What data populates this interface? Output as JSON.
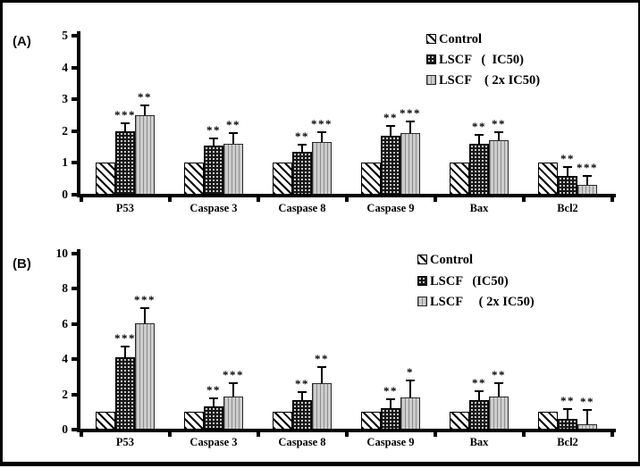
{
  "figure_title": "",
  "accent_color": "#000000",
  "background_color": "#ffffff",
  "chart_data": [
    {
      "id": "panel_a",
      "type": "bar",
      "panel_label": "(A)",
      "title": "",
      "xlabel": "",
      "ylabel": "",
      "grid": false,
      "legend_position": "top-right",
      "ylim": [
        0,
        5
      ],
      "yticks": [
        "0",
        "1",
        "2",
        "3",
        "4",
        "5"
      ],
      "categories": [
        "P53",
        "Caspase 3",
        "Caspase 8",
        "Caspase 9",
        "Bax",
        "Bcl2"
      ],
      "series": [
        {
          "name": "Control",
          "legend_label": "Control",
          "pattern": "hatch",
          "values": [
            1.0,
            1.0,
            1.0,
            1.0,
            1.0,
            1.0
          ],
          "errors": [
            0,
            0,
            0,
            0,
            0,
            0
          ],
          "sig": [
            "",
            "",
            "",
            "",
            "",
            ""
          ]
        },
        {
          "name": "LSCF (IC50)",
          "legend_label": "LSCF   (  IC50)",
          "pattern": "dots",
          "values": [
            2.0,
            1.55,
            1.35,
            1.85,
            1.6,
            0.6
          ],
          "errors": [
            0.25,
            0.22,
            0.22,
            0.3,
            0.28,
            0.26
          ],
          "sig": [
            "***",
            "**",
            "**",
            "**",
            "**",
            "**"
          ]
        },
        {
          "name": "LSCF (2x IC50)",
          "legend_label": "LSCF    ( 2x IC50)",
          "pattern": "vlines",
          "values": [
            2.5,
            1.6,
            1.65,
            1.95,
            1.7,
            0.32
          ],
          "errors": [
            0.3,
            0.35,
            0.33,
            0.35,
            0.27,
            0.26
          ],
          "sig": [
            "**",
            "**",
            "***",
            "***",
            "**",
            "***"
          ]
        }
      ]
    },
    {
      "id": "panel_b",
      "type": "bar",
      "panel_label": "(B)",
      "title": "",
      "xlabel": "",
      "ylabel": "",
      "grid": false,
      "legend_position": "top-right",
      "ylim": [
        0,
        10
      ],
      "yticks": [
        "0",
        "2",
        "4",
        "6",
        "8",
        "10"
      ],
      "categories": [
        "P53",
        "Caspase 3",
        "Caspase 8",
        "Caspase 9",
        "Bax",
        "Bcl2"
      ],
      "series": [
        {
          "name": "Control",
          "legend_label": "Control",
          "pattern": "hatch",
          "values": [
            1.0,
            1.0,
            1.0,
            1.0,
            1.0,
            1.0
          ],
          "errors": [
            0,
            0,
            0,
            0,
            0,
            0
          ],
          "sig": [
            "",
            "",
            "",
            "",
            "",
            ""
          ]
        },
        {
          "name": "LSCF (IC50)",
          "legend_label": "LSCF   (IC50)",
          "pattern": "dots",
          "values": [
            4.1,
            1.3,
            1.65,
            1.2,
            1.7,
            0.6
          ],
          "errors": [
            0.6,
            0.5,
            0.5,
            0.55,
            0.5,
            0.57
          ],
          "sig": [
            "***",
            "**",
            "**",
            "**",
            "**",
            "**"
          ]
        },
        {
          "name": "LSCF (2x IC50)",
          "legend_label": "LSCF     ( 2x IC50)",
          "pattern": "vlines",
          "values": [
            6.05,
            1.9,
            2.65,
            1.85,
            1.9,
            0.32
          ],
          "errors": [
            0.85,
            0.75,
            0.9,
            0.95,
            0.75,
            0.8
          ],
          "sig": [
            "***",
            "***",
            "**",
            "*",
            "**",
            "**"
          ]
        }
      ]
    }
  ]
}
